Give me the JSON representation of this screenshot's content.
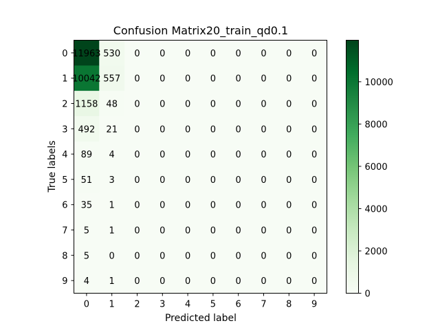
{
  "chart_data": {
    "type": "heatmap",
    "title": "Confusion Matrix20_train_qd0.1",
    "xlabel": "Predicted label",
    "ylabel": "True labels",
    "x_categories": [
      "0",
      "1",
      "2",
      "3",
      "4",
      "5",
      "6",
      "7",
      "8",
      "9"
    ],
    "y_categories": [
      "0",
      "1",
      "2",
      "3",
      "4",
      "5",
      "6",
      "7",
      "8",
      "9"
    ],
    "matrix": [
      [
        11963,
        530,
        0,
        0,
        0,
        0,
        0,
        0,
        0,
        0
      ],
      [
        10042,
        557,
        0,
        0,
        0,
        0,
        0,
        0,
        0,
        0
      ],
      [
        1158,
        48,
        0,
        0,
        0,
        0,
        0,
        0,
        0,
        0
      ],
      [
        492,
        21,
        0,
        0,
        0,
        0,
        0,
        0,
        0,
        0
      ],
      [
        89,
        4,
        0,
        0,
        0,
        0,
        0,
        0,
        0,
        0
      ],
      [
        51,
        3,
        0,
        0,
        0,
        0,
        0,
        0,
        0,
        0
      ],
      [
        35,
        1,
        0,
        0,
        0,
        0,
        0,
        0,
        0,
        0
      ],
      [
        5,
        1,
        0,
        0,
        0,
        0,
        0,
        0,
        0,
        0
      ],
      [
        5,
        0,
        0,
        0,
        0,
        0,
        0,
        0,
        0,
        0
      ],
      [
        4,
        1,
        0,
        0,
        0,
        0,
        0,
        0,
        0,
        0
      ]
    ],
    "colormap": "Greens",
    "colorbar": {
      "range": [
        0,
        11963
      ],
      "ticks": [
        0,
        2000,
        4000,
        6000,
        8000,
        10000
      ]
    },
    "grid": false
  }
}
